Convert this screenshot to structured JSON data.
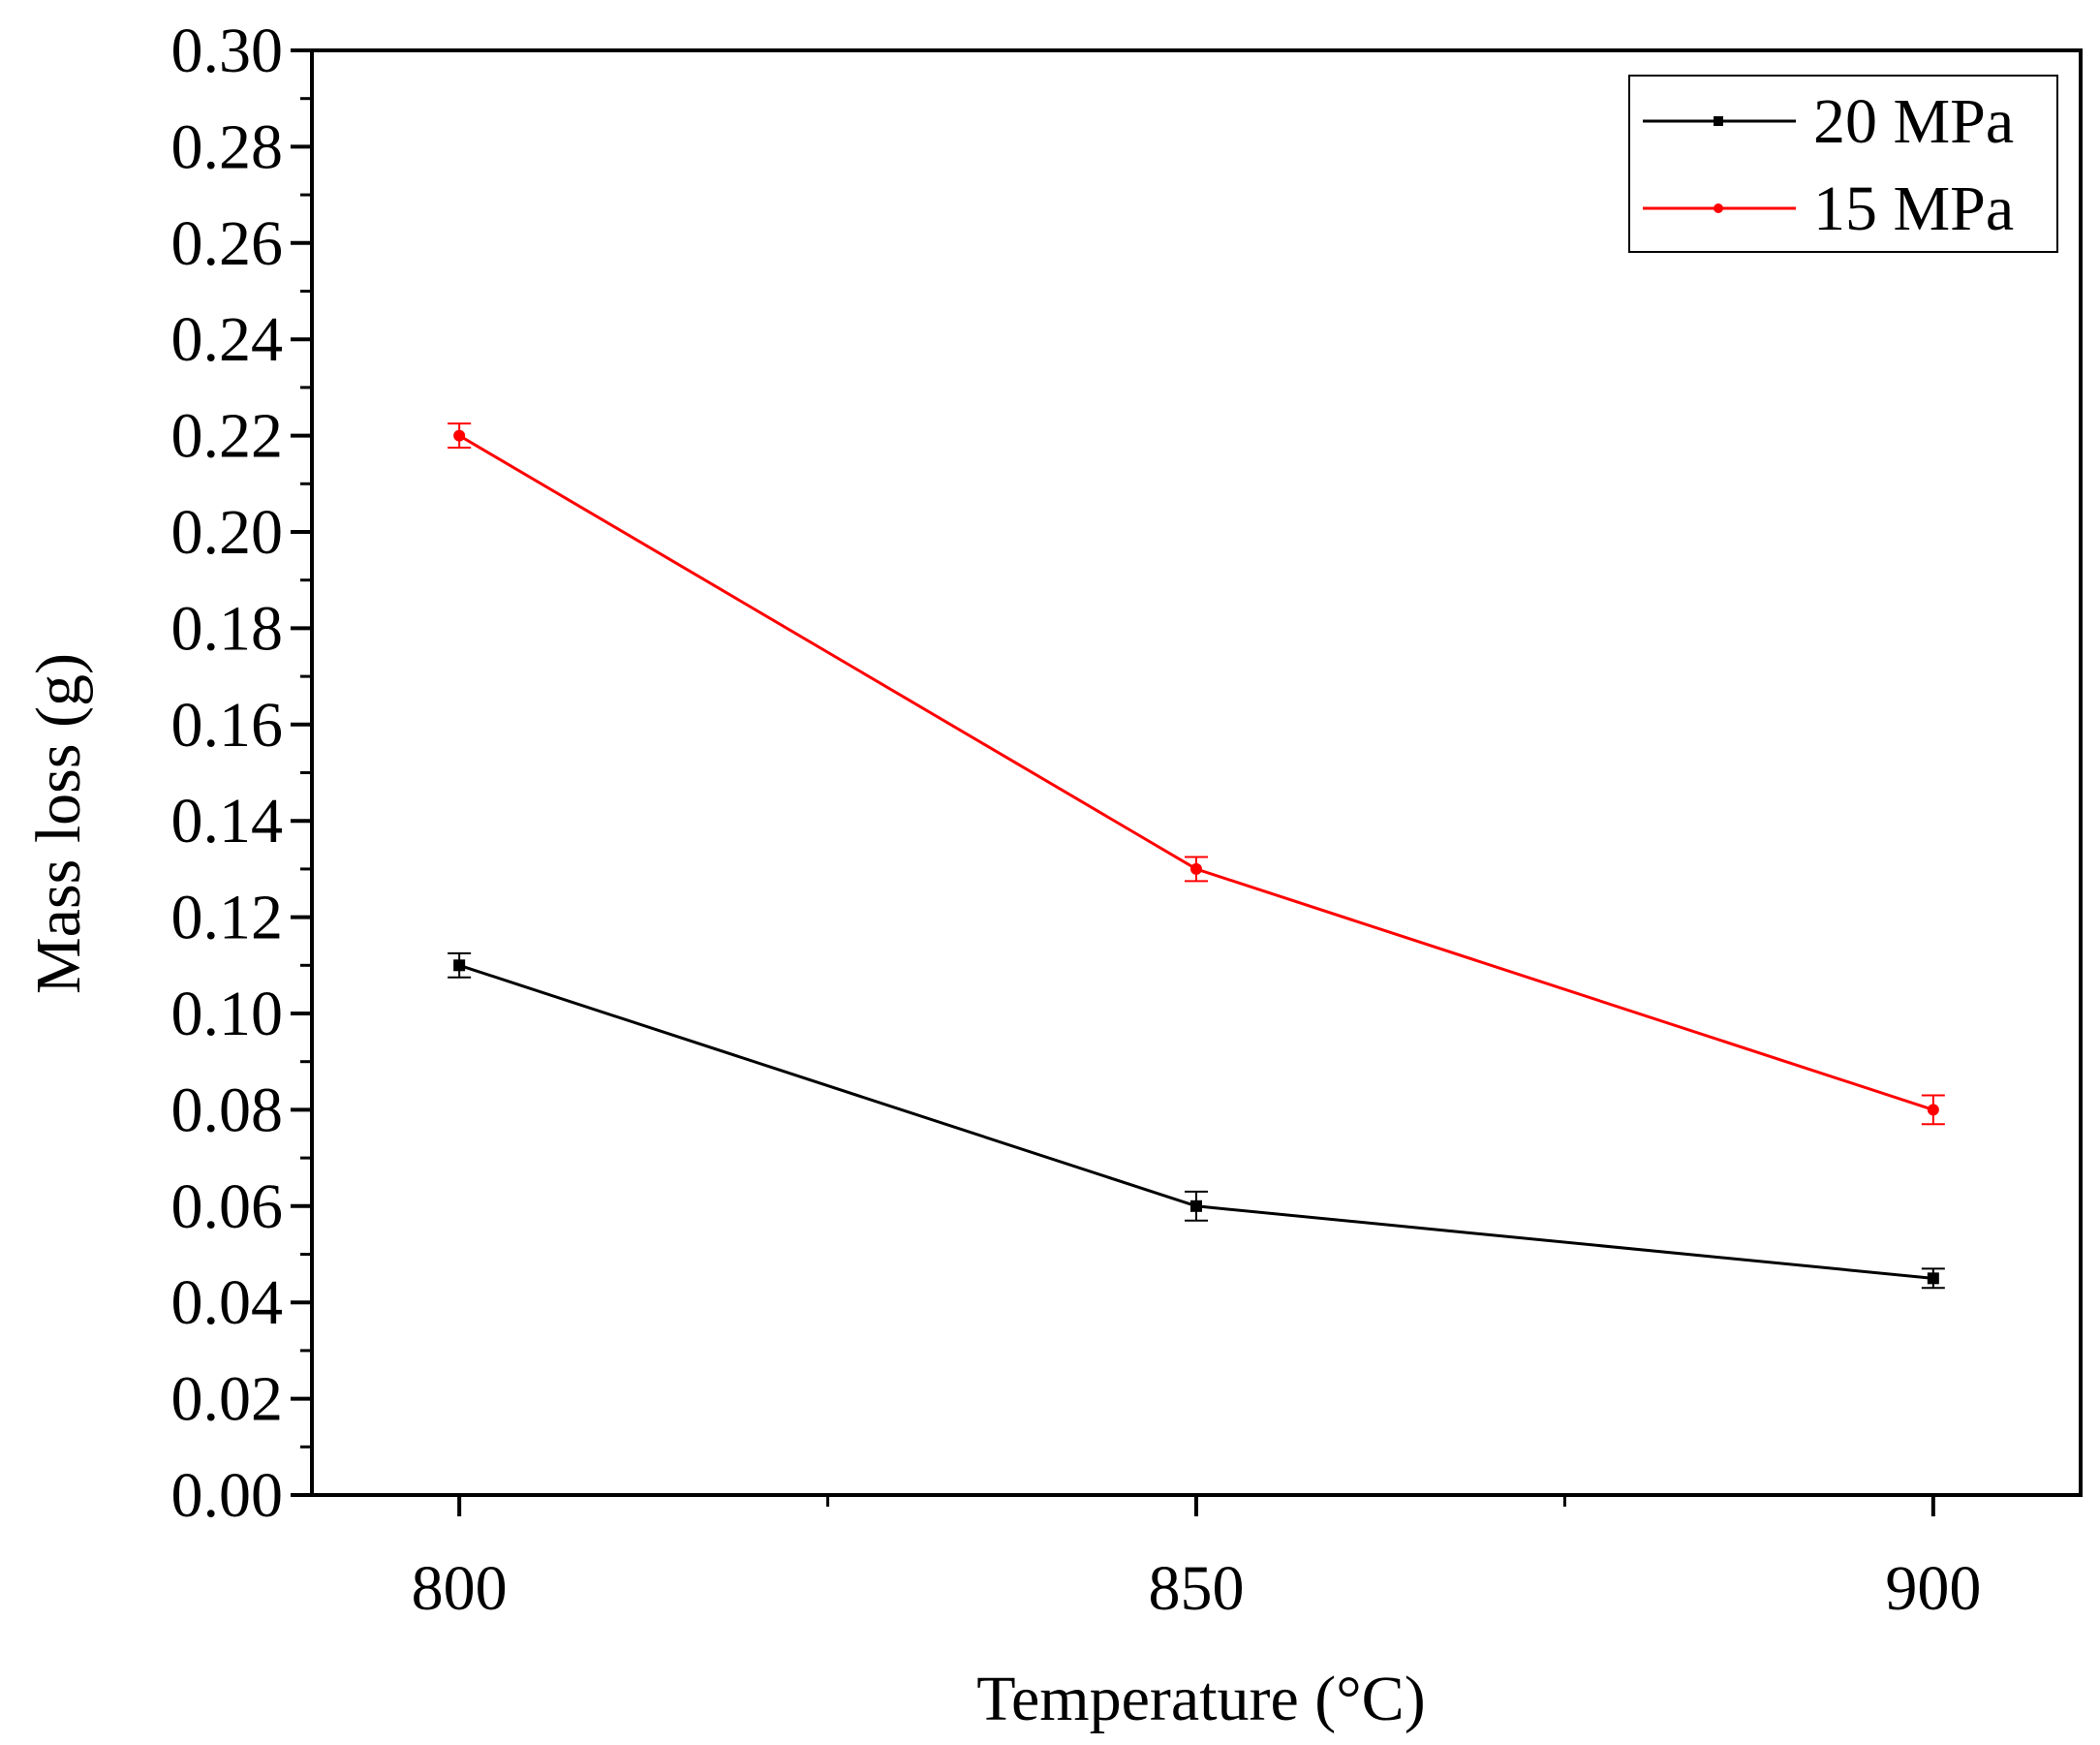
{
  "chart_data": {
    "type": "line",
    "title": "",
    "xlabel": "Temperature (°C)",
    "ylabel": "Mass loss (g)",
    "x": [
      800,
      850,
      900
    ],
    "xlim": [
      790,
      910
    ],
    "ylim": [
      0,
      0.3
    ],
    "xticks": [
      800,
      850,
      900
    ],
    "xtick_labels": [
      "800",
      "850",
      "900"
    ],
    "yticks": [
      0,
      0.02,
      0.04,
      0.06,
      0.08,
      0.1,
      0.12,
      0.14,
      0.16,
      0.18,
      0.2,
      0.22,
      0.24,
      0.26,
      0.28,
      0.3
    ],
    "ytick_labels": [
      "0.00",
      "0.02",
      "0.04",
      "0.06",
      "0.08",
      "0.10",
      "0.12",
      "0.14",
      "0.16",
      "0.18",
      "0.20",
      "0.22",
      "0.24",
      "0.26",
      "0.28",
      "0.30"
    ],
    "grid": false,
    "legend_position": "top-right",
    "series": [
      {
        "name": "20 MPa",
        "color": "#000000",
        "marker": "square",
        "values": [
          0.11,
          0.06,
          0.045
        ],
        "errors": [
          0.0025,
          0.003,
          0.002
        ]
      },
      {
        "name": "15 MPa",
        "color": "#ff0000",
        "marker": "circle",
        "values": [
          0.22,
          0.13,
          0.08
        ],
        "errors": [
          0.0025,
          0.0025,
          0.003
        ]
      }
    ]
  }
}
